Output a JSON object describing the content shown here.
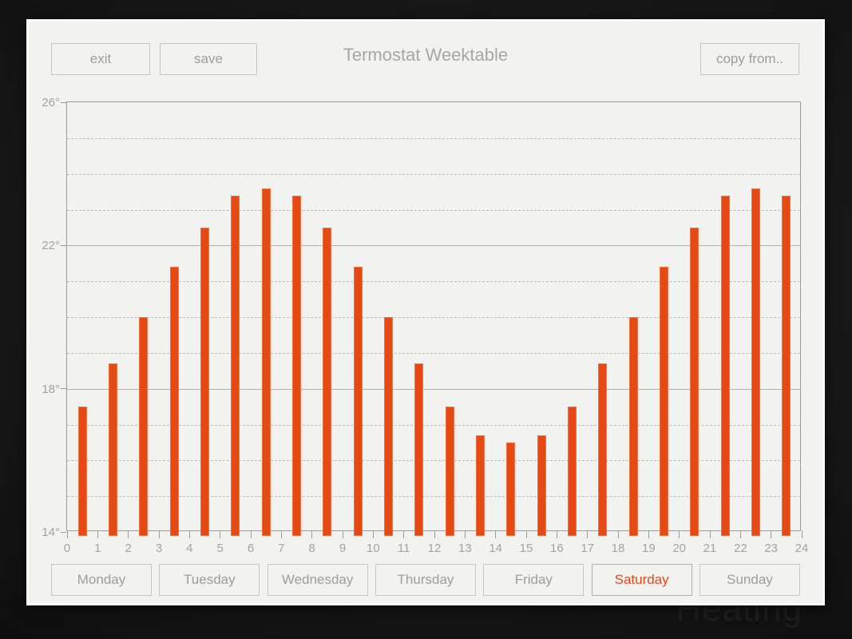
{
  "header": {
    "title": "Termostat Weektable",
    "exit_label": "exit",
    "save_label": "save",
    "copy_from_label": "copy from.."
  },
  "background": {
    "watermark": "Heating"
  },
  "days": [
    {
      "label": "Monday",
      "selected": false
    },
    {
      "label": "Tuesday",
      "selected": false
    },
    {
      "label": "Wednesday",
      "selected": false
    },
    {
      "label": "Thursday",
      "selected": false
    },
    {
      "label": "Friday",
      "selected": false
    },
    {
      "label": "Saturday",
      "selected": true
    },
    {
      "label": "Sunday",
      "selected": false
    }
  ],
  "colors": {
    "bar": "#e54a15",
    "selected_day_text": "#e8471d",
    "button_text": "#9d9d9d",
    "button_border": "#c6c6c6",
    "axis_text": "#a3a3a3",
    "panel_background": "#f2f2f1"
  },
  "chart_data": {
    "type": "bar",
    "title": "",
    "xlabel": "",
    "ylabel": "",
    "x": [
      0,
      1,
      2,
      3,
      4,
      5,
      6,
      7,
      8,
      9,
      10,
      11,
      12,
      13,
      14,
      15,
      16,
      17,
      18,
      19,
      20,
      21,
      22,
      23
    ],
    "values": [
      17.5,
      18.7,
      20.0,
      21.4,
      22.5,
      23.4,
      23.6,
      23.4,
      22.5,
      21.4,
      20.0,
      18.7,
      17.5,
      16.7,
      16.5,
      16.7,
      17.5,
      18.7,
      20.0,
      21.4,
      22.5,
      23.4,
      23.6,
      23.4
    ],
    "ylim": [
      14,
      26
    ],
    "xlim": [
      0,
      24
    ],
    "y_major_ticks": [
      14,
      18,
      22,
      26
    ],
    "y_major_tick_labels": [
      "14°",
      "18°",
      "22°",
      "26°"
    ],
    "y_minor_gridlines_every": 1,
    "y_minor_gridline_style": "dashed",
    "x_tick_labels": [
      "0",
      "1",
      "2",
      "3",
      "4",
      "5",
      "6",
      "7",
      "8",
      "9",
      "10",
      "11",
      "12",
      "13",
      "14",
      "15",
      "16",
      "17",
      "18",
      "19",
      "20",
      "21",
      "22",
      "23",
      "24"
    ],
    "grid": true,
    "legend": "none",
    "bars_centered_between_ticks": true
  }
}
